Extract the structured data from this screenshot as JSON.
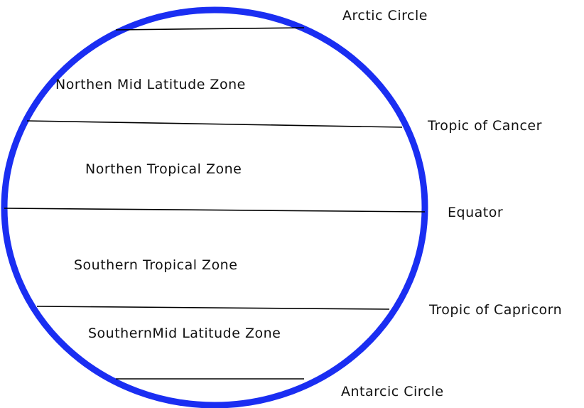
{
  "colors": {
    "globe_outline": "#1a2ef2",
    "lines": "#000000",
    "text": "#111111"
  },
  "lines": {
    "arctic_circle": "Arctic Circle",
    "tropic_of_cancer": "Tropic of Cancer",
    "equator": "Equator",
    "tropic_of_capricorn": "Tropic of Capricorn",
    "antarctic_circle": "Antarcic Circle"
  },
  "zones": {
    "northern_mid_latitude": "Northen Mid Latitude Zone",
    "northern_tropical": "Northen Tropical Zone",
    "southern_tropical": "Southern Tropical Zone",
    "southern_mid_latitude": "SouthernMid Latitude Zone"
  }
}
